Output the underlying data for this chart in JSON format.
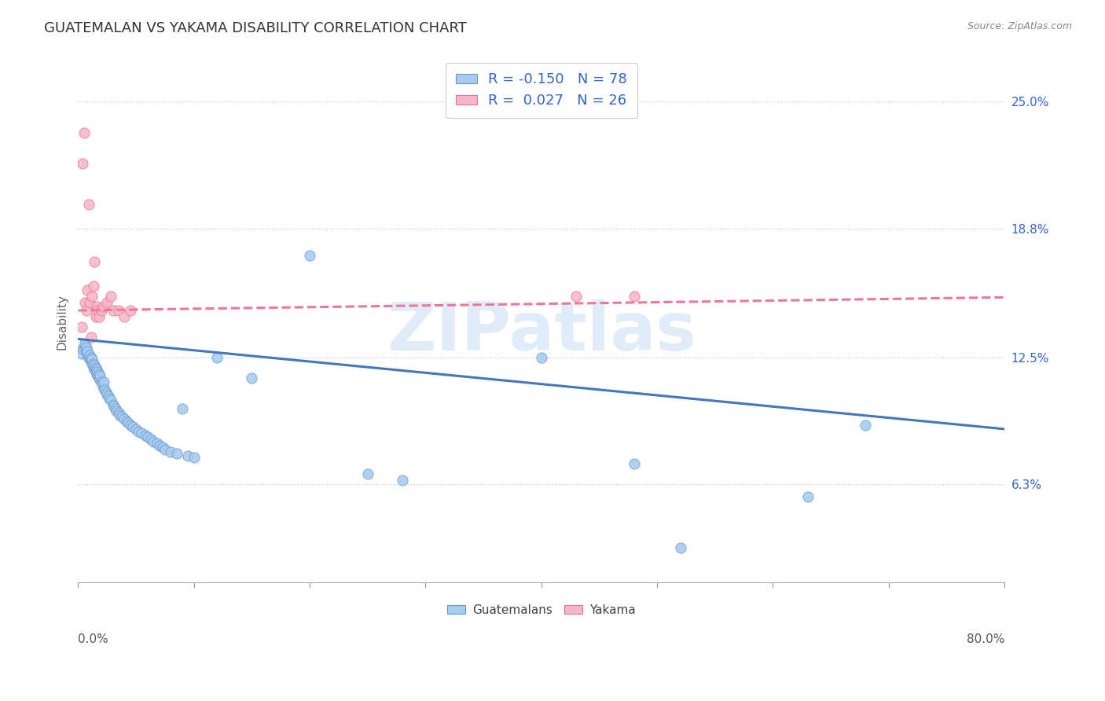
{
  "title": "GUATEMALAN VS YAKAMA DISABILITY CORRELATION CHART",
  "source": "Source: ZipAtlas.com",
  "ylabel": "Disability",
  "yticks": [
    0.063,
    0.125,
    0.188,
    0.25
  ],
  "ytick_labels": [
    "6.3%",
    "12.5%",
    "18.8%",
    "25.0%"
  ],
  "xlim": [
    0.0,
    0.8
  ],
  "ylim": [
    0.015,
    0.27
  ],
  "legend_blue_label": "Guatemalans",
  "legend_pink_label": "Yakama",
  "legend_r_blue": "R = -0.150",
  "legend_n_blue": "N = 78",
  "legend_r_pink": "R =  0.027",
  "legend_n_pink": "N = 26",
  "blue_color": "#A8CCF0",
  "pink_color": "#F9B8C8",
  "blue_edge_color": "#6699CC",
  "pink_edge_color": "#E87090",
  "blue_line_color": "#4477BB",
  "pink_line_color": "#EE7799",
  "r_value_color": "#3366CC",
  "n_value_color": "#3366CC",
  "blue_intercept": 0.134,
  "blue_slope": -0.055,
  "pink_intercept": 0.148,
  "pink_slope": 0.008,
  "blue_x": [
    0.003,
    0.004,
    0.005,
    0.006,
    0.006,
    0.007,
    0.007,
    0.008,
    0.008,
    0.009,
    0.01,
    0.01,
    0.011,
    0.011,
    0.012,
    0.012,
    0.013,
    0.013,
    0.014,
    0.014,
    0.015,
    0.015,
    0.016,
    0.016,
    0.017,
    0.017,
    0.018,
    0.018,
    0.019,
    0.019,
    0.02,
    0.021,
    0.022,
    0.022,
    0.023,
    0.024,
    0.025,
    0.026,
    0.027,
    0.028,
    0.03,
    0.031,
    0.032,
    0.033,
    0.035,
    0.036,
    0.038,
    0.04,
    0.042,
    0.043,
    0.045,
    0.047,
    0.05,
    0.052,
    0.055,
    0.058,
    0.06,
    0.063,
    0.065,
    0.068,
    0.07,
    0.073,
    0.075,
    0.08,
    0.085,
    0.09,
    0.095,
    0.1,
    0.12,
    0.15,
    0.2,
    0.25,
    0.28,
    0.4,
    0.48,
    0.52,
    0.63,
    0.68
  ],
  "blue_y": [
    0.127,
    0.129,
    0.13,
    0.131,
    0.132,
    0.128,
    0.13,
    0.126,
    0.128,
    0.125,
    0.124,
    0.126,
    0.123,
    0.125,
    0.122,
    0.124,
    0.12,
    0.122,
    0.119,
    0.121,
    0.118,
    0.12,
    0.117,
    0.119,
    0.116,
    0.118,
    0.115,
    0.117,
    0.114,
    0.116,
    0.113,
    0.112,
    0.11,
    0.113,
    0.109,
    0.108,
    0.107,
    0.106,
    0.105,
    0.104,
    0.102,
    0.101,
    0.1,
    0.099,
    0.098,
    0.097,
    0.096,
    0.095,
    0.094,
    0.093,
    0.092,
    0.091,
    0.09,
    0.089,
    0.088,
    0.087,
    0.086,
    0.085,
    0.084,
    0.083,
    0.082,
    0.081,
    0.08,
    0.079,
    0.078,
    0.1,
    0.077,
    0.076,
    0.125,
    0.115,
    0.175,
    0.068,
    0.065,
    0.125,
    0.073,
    0.032,
    0.057,
    0.092
  ],
  "pink_x": [
    0.003,
    0.004,
    0.005,
    0.006,
    0.007,
    0.008,
    0.009,
    0.01,
    0.011,
    0.012,
    0.013,
    0.014,
    0.015,
    0.016,
    0.017,
    0.018,
    0.02,
    0.022,
    0.025,
    0.028,
    0.03,
    0.035,
    0.04,
    0.045,
    0.43,
    0.48
  ],
  "pink_y": [
    0.14,
    0.22,
    0.235,
    0.152,
    0.148,
    0.158,
    0.2,
    0.152,
    0.135,
    0.155,
    0.16,
    0.172,
    0.145,
    0.15,
    0.148,
    0.145,
    0.148,
    0.15,
    0.152,
    0.155,
    0.148,
    0.148,
    0.145,
    0.148,
    0.155,
    0.155
  ],
  "background_color": "#FFFFFF",
  "grid_color": "#CCCCCC",
  "title_fontsize": 13,
  "axis_label_fontsize": 11,
  "tick_fontsize": 11,
  "watermark_text": "ZIPatlas",
  "watermark_color": "#C8DFF5",
  "watermark_alpha": 0.55
}
